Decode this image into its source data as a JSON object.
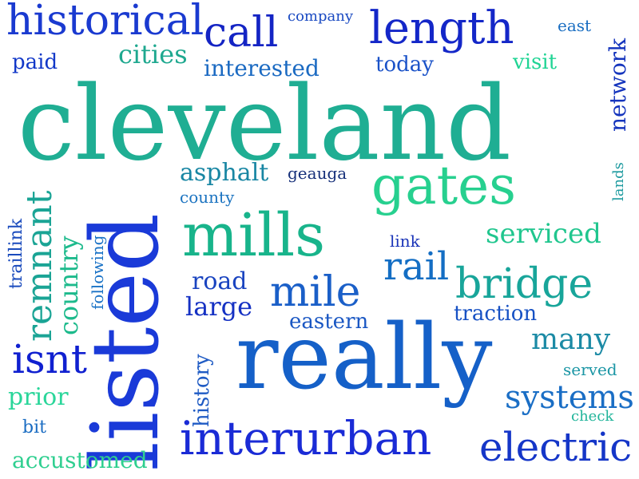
{
  "words": [
    {
      "text": "cleveland",
      "color": "#1fae93"
    },
    {
      "text": "listed",
      "color": "#1a3ad8"
    },
    {
      "text": "really",
      "color": "#1560c8"
    },
    {
      "text": "mills",
      "color": "#18b48b"
    },
    {
      "text": "gates",
      "color": "#27d08f"
    },
    {
      "text": "interurban",
      "color": "#1a2bd6"
    },
    {
      "text": "historical",
      "color": "#1a3ad0"
    },
    {
      "text": "length",
      "color": "#1427c8"
    },
    {
      "text": "bridge",
      "color": "#18a59a"
    },
    {
      "text": "call",
      "color": "#1424c4"
    },
    {
      "text": "electric",
      "color": "#1536c8"
    },
    {
      "text": "remnant",
      "color": "#1aa495"
    },
    {
      "text": "mile",
      "color": "#1a5fc8"
    },
    {
      "text": "isnt",
      "color": "#1020d0"
    },
    {
      "text": "rail",
      "color": "#146ec4"
    },
    {
      "text": "systems",
      "color": "#1a6ec5"
    },
    {
      "text": "serviced",
      "color": "#20c68e"
    },
    {
      "text": "country",
      "color": "#1dba8c"
    },
    {
      "text": "many",
      "color": "#1b8aa5"
    },
    {
      "text": "cities",
      "color": "#1ea88f"
    },
    {
      "text": "network",
      "color": "#1535bd"
    },
    {
      "text": "asphalt",
      "color": "#1886a3"
    },
    {
      "text": "large",
      "color": "#1531c3"
    },
    {
      "text": "road",
      "color": "#1a44c0"
    },
    {
      "text": "prior",
      "color": "#2ad69a"
    },
    {
      "text": "interested",
      "color": "#1b6ac2"
    },
    {
      "text": "accustomed",
      "color": "#2fcf90"
    },
    {
      "text": "eastern",
      "color": "#1a57c3"
    },
    {
      "text": "traction",
      "color": "#1751c4"
    },
    {
      "text": "history",
      "color": "#1f5bc4"
    },
    {
      "text": "visit",
      "color": "#20d494"
    },
    {
      "text": "today",
      "color": "#1a52c8"
    },
    {
      "text": "paid",
      "color": "#1238c8"
    },
    {
      "text": "traillink",
      "color": "#1a4bbd"
    },
    {
      "text": "following",
      "color": "#1b73c6"
    },
    {
      "text": "served",
      "color": "#1b96a5"
    },
    {
      "text": "bit",
      "color": "#1a6cc2"
    },
    {
      "text": "geauga",
      "color": "#16307a"
    },
    {
      "text": "county",
      "color": "#1b73c0"
    },
    {
      "text": "link",
      "color": "#1a34b8"
    },
    {
      "text": "company",
      "color": "#1a4ac2"
    },
    {
      "text": "east",
      "color": "#1a6ec2"
    },
    {
      "text": "lands",
      "color": "#1f9ba0"
    },
    {
      "text": "check",
      "color": "#20b49a"
    }
  ]
}
